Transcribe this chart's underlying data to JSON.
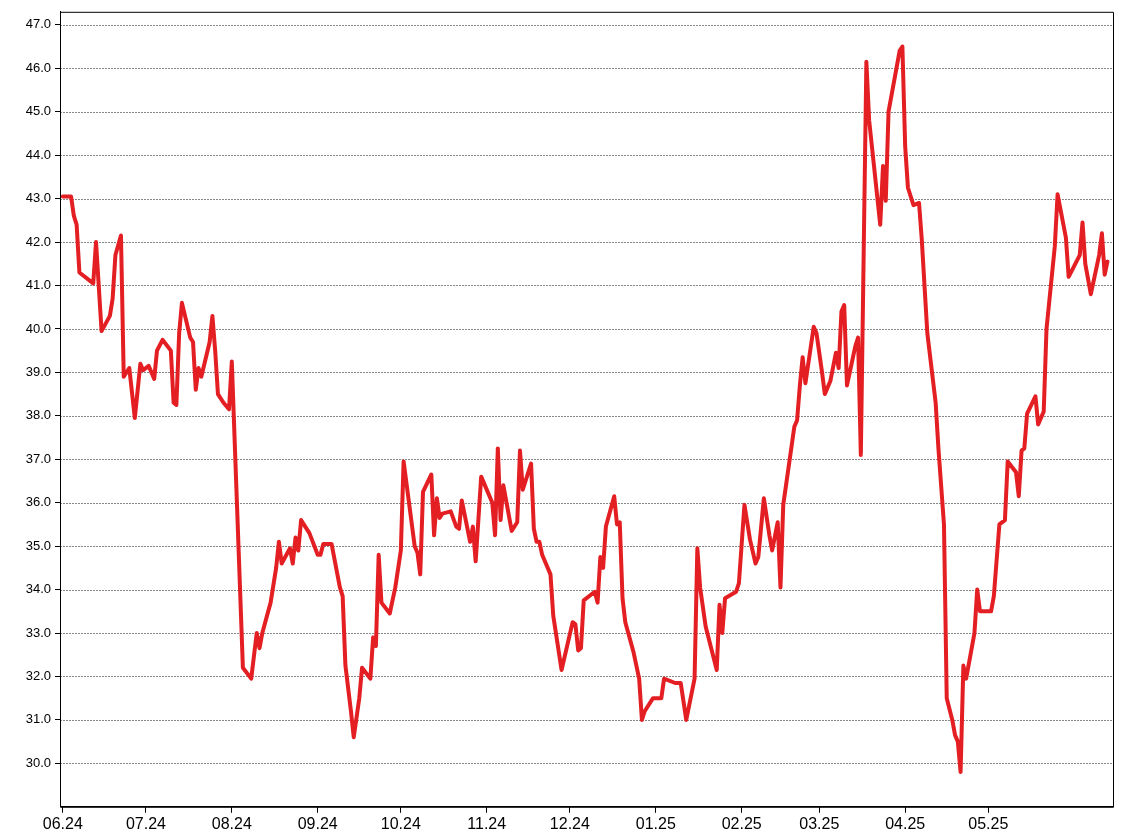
{
  "chart_data": {
    "type": "line",
    "color": "#e41f23",
    "line_style": "solid",
    "marker": "none",
    "grid": "y",
    "legend": false,
    "xlim": [
      "2024-05-31",
      "2025-06-15"
    ],
    "xticks": [
      {
        "value": "2024-06",
        "label": "06.24"
      },
      {
        "value": "2024-07",
        "label": "07.24"
      },
      {
        "value": "2024-08",
        "label": "08.24"
      },
      {
        "value": "2024-09",
        "label": "09.24"
      },
      {
        "value": "2024-10",
        "label": "10.24"
      },
      {
        "value": "2024-11",
        "label": "11.24"
      },
      {
        "value": "2024-12",
        "label": "12.24"
      },
      {
        "value": "2025-01",
        "label": "01.25"
      },
      {
        "value": "2025-02",
        "label": "02.25"
      },
      {
        "value": "2025-03",
        "label": "03.25"
      },
      {
        "value": "2025-04",
        "label": "04.25"
      },
      {
        "value": "2025-05",
        "label": "05.25"
      }
    ],
    "ylim": [
      29.0,
      47.3
    ],
    "yticks": [
      {
        "value": 30,
        "label": "30.0"
      },
      {
        "value": 31,
        "label": "31.0"
      },
      {
        "value": 32,
        "label": "32.0"
      },
      {
        "value": 33,
        "label": "33.0"
      },
      {
        "value": 34,
        "label": "34.0"
      },
      {
        "value": 35,
        "label": "35.0"
      },
      {
        "value": 36,
        "label": "36.0"
      },
      {
        "value": 37,
        "label": "37.0"
      },
      {
        "value": 38,
        "label": "38.0"
      },
      {
        "value": 39,
        "label": "39.0"
      },
      {
        "value": 40,
        "label": "40.0"
      },
      {
        "value": 41,
        "label": "41.0"
      },
      {
        "value": 42,
        "label": "42.0"
      },
      {
        "value": 43,
        "label": "43.0"
      },
      {
        "value": 44,
        "label": "44.0"
      },
      {
        "value": 45,
        "label": "45.0"
      },
      {
        "value": 46,
        "label": "46.0"
      },
      {
        "value": 47,
        "label": "47.0"
      }
    ],
    "x": [
      "2024-06-01",
      "2024-06-04",
      "2024-06-05",
      "2024-06-06",
      "2024-06-07",
      "2024-06-12",
      "2024-06-13",
      "2024-06-15",
      "2024-06-18",
      "2024-06-19",
      "2024-06-20",
      "2024-06-22",
      "2024-06-23",
      "2024-06-25",
      "2024-06-27",
      "2024-06-29",
      "2024-06-30",
      "2024-07-02",
      "2024-07-04",
      "2024-07-05",
      "2024-07-07",
      "2024-07-10",
      "2024-07-11",
      "2024-07-12",
      "2024-07-13",
      "2024-07-14",
      "2024-07-17",
      "2024-07-18",
      "2024-07-19",
      "2024-07-20",
      "2024-07-21",
      "2024-07-24",
      "2024-07-25",
      "2024-07-26",
      "2024-07-27",
      "2024-07-29",
      "2024-07-31",
      "2024-08-01",
      "2024-08-05",
      "2024-08-08",
      "2024-08-10",
      "2024-08-11",
      "2024-08-12",
      "2024-08-15",
      "2024-08-17",
      "2024-08-18",
      "2024-08-19",
      "2024-08-22",
      "2024-08-23",
      "2024-08-24",
      "2024-08-25",
      "2024-08-26",
      "2024-08-29",
      "2024-09-01",
      "2024-09-02",
      "2024-09-03",
      "2024-09-06",
      "2024-09-09",
      "2024-09-10",
      "2024-09-11",
      "2024-09-13",
      "2024-09-14",
      "2024-09-16",
      "2024-09-17",
      "2024-09-20",
      "2024-09-21",
      "2024-09-22",
      "2024-09-23",
      "2024-09-24",
      "2024-09-27",
      "2024-09-29",
      "2024-10-01",
      "2024-10-02",
      "2024-10-06",
      "2024-10-07",
      "2024-10-08",
      "2024-10-09",
      "2024-10-12",
      "2024-10-13",
      "2024-10-14",
      "2024-10-15",
      "2024-10-16",
      "2024-10-19",
      "2024-10-21",
      "2024-10-22",
      "2024-10-23",
      "2024-10-26",
      "2024-10-27",
      "2024-10-28",
      "2024-10-30",
      "2024-11-03",
      "2024-11-04",
      "2024-11-05",
      "2024-11-06",
      "2024-11-07",
      "2024-11-10",
      "2024-11-12",
      "2024-11-13",
      "2024-11-14",
      "2024-11-17",
      "2024-11-18",
      "2024-11-19",
      "2024-11-20",
      "2024-11-21",
      "2024-11-24",
      "2024-11-25",
      "2024-11-28",
      "2024-12-02",
      "2024-12-03",
      "2024-12-04",
      "2024-12-05",
      "2024-12-06",
      "2024-12-10",
      "2024-12-11",
      "2024-12-12",
      "2024-12-13",
      "2024-12-14",
      "2024-12-17",
      "2024-12-18",
      "2024-12-19",
      "2024-12-20",
      "2024-12-21",
      "2024-12-24",
      "2024-12-26",
      "2024-12-27",
      "2024-12-28",
      "2024-12-31",
      "2025-01-03",
      "2025-01-04",
      "2025-01-08",
      "2025-01-10",
      "2025-01-12",
      "2025-01-15",
      "2025-01-16",
      "2025-01-17",
      "2025-01-19",
      "2025-01-23",
      "2025-01-24",
      "2025-01-25",
      "2025-01-26",
      "2025-01-30",
      "2025-01-31",
      "2025-02-02",
      "2025-02-04",
      "2025-02-06",
      "2025-02-07",
      "2025-02-09",
      "2025-02-11",
      "2025-02-12",
      "2025-02-14",
      "2025-02-15",
      "2025-02-16",
      "2025-02-20",
      "2025-02-21",
      "2025-02-22",
      "2025-02-23",
      "2025-02-24",
      "2025-02-27",
      "2025-02-28",
      "2025-03-02",
      "2025-03-03",
      "2025-03-05",
      "2025-03-07",
      "2025-03-08",
      "2025-03-09",
      "2025-03-10",
      "2025-03-11",
      "2025-03-14",
      "2025-03-15",
      "2025-03-16",
      "2025-03-18",
      "2025-03-19",
      "2025-03-23",
      "2025-03-24",
      "2025-03-25",
      "2025-03-26",
      "2025-03-30",
      "2025-03-31",
      "2025-04-01",
      "2025-04-02",
      "2025-04-04",
      "2025-04-06",
      "2025-04-07",
      "2025-04-09",
      "2025-04-12",
      "2025-04-13",
      "2025-04-15",
      "2025-04-16",
      "2025-04-18",
      "2025-04-19",
      "2025-04-20",
      "2025-04-21",
      "2025-04-22",
      "2025-04-23",
      "2025-04-26",
      "2025-04-27",
      "2025-04-28",
      "2025-05-02",
      "2025-05-03",
      "2025-05-05",
      "2025-05-07",
      "2025-05-08",
      "2025-05-11",
      "2025-05-12",
      "2025-05-13",
      "2025-05-14",
      "2025-05-15",
      "2025-05-18",
      "2025-05-19",
      "2025-05-21",
      "2025-05-22",
      "2025-05-25",
      "2025-05-26",
      "2025-05-29",
      "2025-05-30",
      "2025-06-03",
      "2025-06-04",
      "2025-06-05",
      "2025-06-07",
      "2025-06-10",
      "2025-06-11",
      "2025-06-12",
      "2025-06-13"
    ],
    "values": [
      43.05,
      43.05,
      42.6,
      42.4,
      41.3,
      41.05,
      42.0,
      39.95,
      40.3,
      40.7,
      41.7,
      42.15,
      38.9,
      39.1,
      37.95,
      39.2,
      39.05,
      39.15,
      38.85,
      39.5,
      39.75,
      39.5,
      38.3,
      38.25,
      39.9,
      40.6,
      39.8,
      39.7,
      38.6,
      39.1,
      38.9,
      39.7,
      40.3,
      39.5,
      38.5,
      38.3,
      38.15,
      39.25,
      32.2,
      31.95,
      33.0,
      32.65,
      33.0,
      33.7,
      34.5,
      35.1,
      34.6,
      34.95,
      34.6,
      35.2,
      34.9,
      35.6,
      35.3,
      34.8,
      34.8,
      35.05,
      35.05,
      34.05,
      33.85,
      32.25,
      31.2,
      30.6,
      31.5,
      32.2,
      31.95,
      32.9,
      32.7,
      34.8,
      33.7,
      33.45,
      34.05,
      34.9,
      36.95,
      35.0,
      34.85,
      34.35,
      36.25,
      36.65,
      35.25,
      36.1,
      35.65,
      35.75,
      35.8,
      35.45,
      35.4,
      36.05,
      35.1,
      35.45,
      34.65,
      36.6,
      36.0,
      35.25,
      37.25,
      35.6,
      36.4,
      35.35,
      35.55,
      37.2,
      36.3,
      36.9,
      35.4,
      35.1,
      35.1,
      34.8,
      34.35,
      33.4,
      32.15,
      33.25,
      33.2,
      32.6,
      32.65,
      33.75,
      33.95,
      33.7,
      34.75,
      34.5,
      35.45,
      36.15,
      35.5,
      35.55,
      33.8,
      33.25,
      32.55,
      31.95,
      31.0,
      31.2,
      31.5,
      31.5,
      31.95,
      31.85,
      31.85,
      31.0,
      31.95,
      34.95,
      34.05,
      33.15,
      32.15,
      33.65,
      33.0,
      33.8,
      33.95,
      34.15,
      35.95,
      35.15,
      34.6,
      34.75,
      36.1,
      35.25,
      34.9,
      35.55,
      34.05,
      35.95,
      37.75,
      37.9,
      38.7,
      39.35,
      38.75,
      40.05,
      39.9,
      39.0,
      38.5,
      38.8,
      39.45,
      39.1,
      40.4,
      40.55,
      38.7,
      39.6,
      39.8,
      37.1,
      46.15,
      44.8,
      42.4,
      43.75,
      42.95,
      45.0,
      46.4,
      46.5,
      44.2,
      43.25,
      42.85,
      42.9,
      42.05,
      39.9,
      38.3,
      37.25,
      35.5,
      31.5,
      31.0,
      30.65,
      30.5,
      29.8,
      32.25,
      31.95,
      33.0,
      34.0,
      33.5,
      33.5,
      33.85,
      35.5,
      35.6,
      36.95,
      36.7,
      36.15,
      37.2,
      37.25,
      38.05,
      38.45,
      37.8,
      38.1,
      40.0,
      41.9,
      43.1,
      42.1,
      41.2,
      41.7,
      42.45,
      41.5,
      40.8,
      41.7,
      42.2,
      41.25,
      41.55
    ]
  }
}
